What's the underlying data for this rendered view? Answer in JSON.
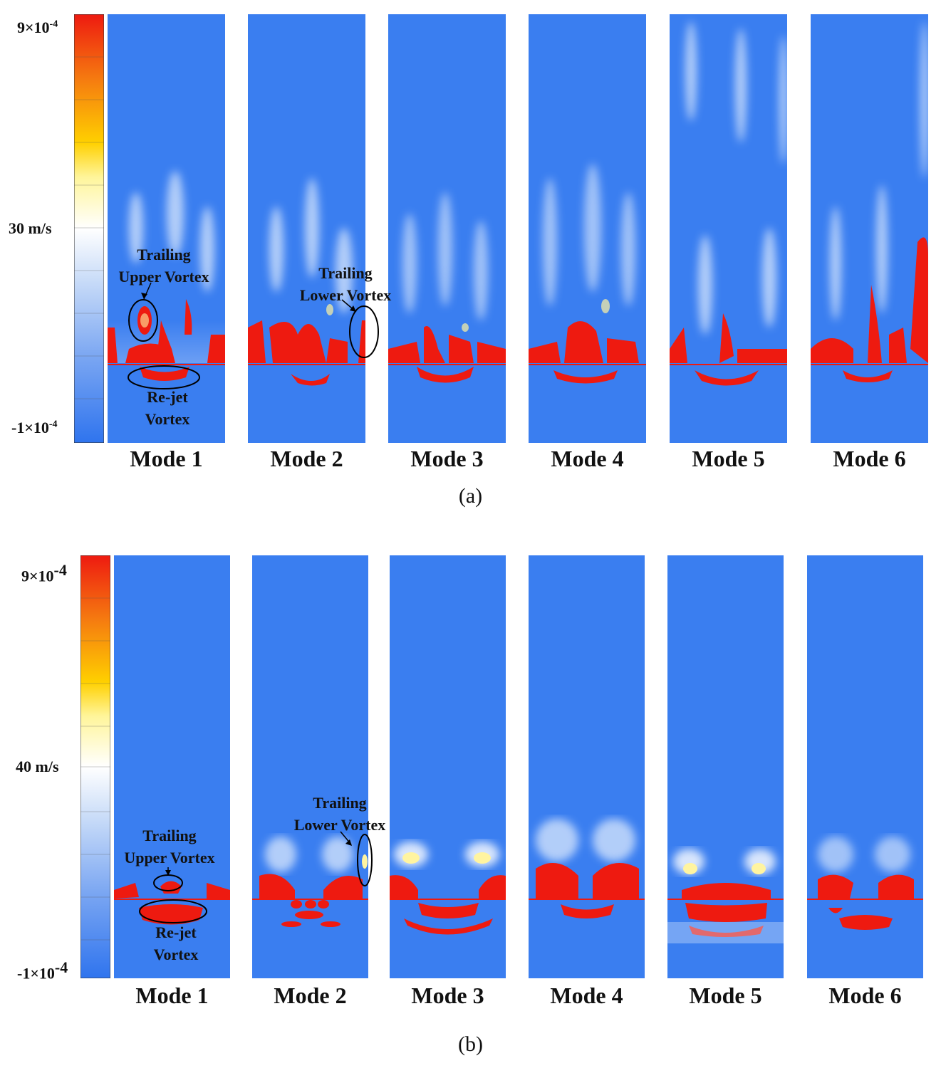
{
  "figure_a": {
    "colorbar": {
      "max_label": "9×10",
      "max_exp": "-4",
      "mid_label": "30 m/s",
      "min_label": "-1×10",
      "min_exp": "-4"
    },
    "modes": [
      "Mode 1",
      "Mode 2",
      "Mode 3",
      "Mode 4",
      "Mode 5",
      "Mode 6"
    ],
    "annotations": {
      "upper": [
        "Trailing",
        "Upper Vortex"
      ],
      "lower": [
        "Trailing",
        "Lower Vortex"
      ],
      "rejet": [
        "Re-jet",
        "Vortex"
      ]
    },
    "sublabel": "(a)"
  },
  "figure_b": {
    "colorbar": {
      "max_label": "9×10",
      "max_exp": "-4",
      "mid_label": "40 m/s",
      "min_label": "-1×10",
      "min_exp": "-4"
    },
    "modes": [
      "Mode 1",
      "Mode 2",
      "Mode 3",
      "Mode 4",
      "Mode 5",
      "Mode 6"
    ],
    "annotations": {
      "upper": [
        "Trailing",
        "Upper Vortex"
      ],
      "lower": [
        "Trailing",
        "Lower Vortex"
      ],
      "rejet": [
        "Re-jet",
        "Vortex"
      ]
    },
    "sublabel": "(b)"
  },
  "colors": {
    "background": "#3a7ef0",
    "vortex": "#ee1a10",
    "highlight": "#fff4a0",
    "wake": "#dbe9fb"
  }
}
